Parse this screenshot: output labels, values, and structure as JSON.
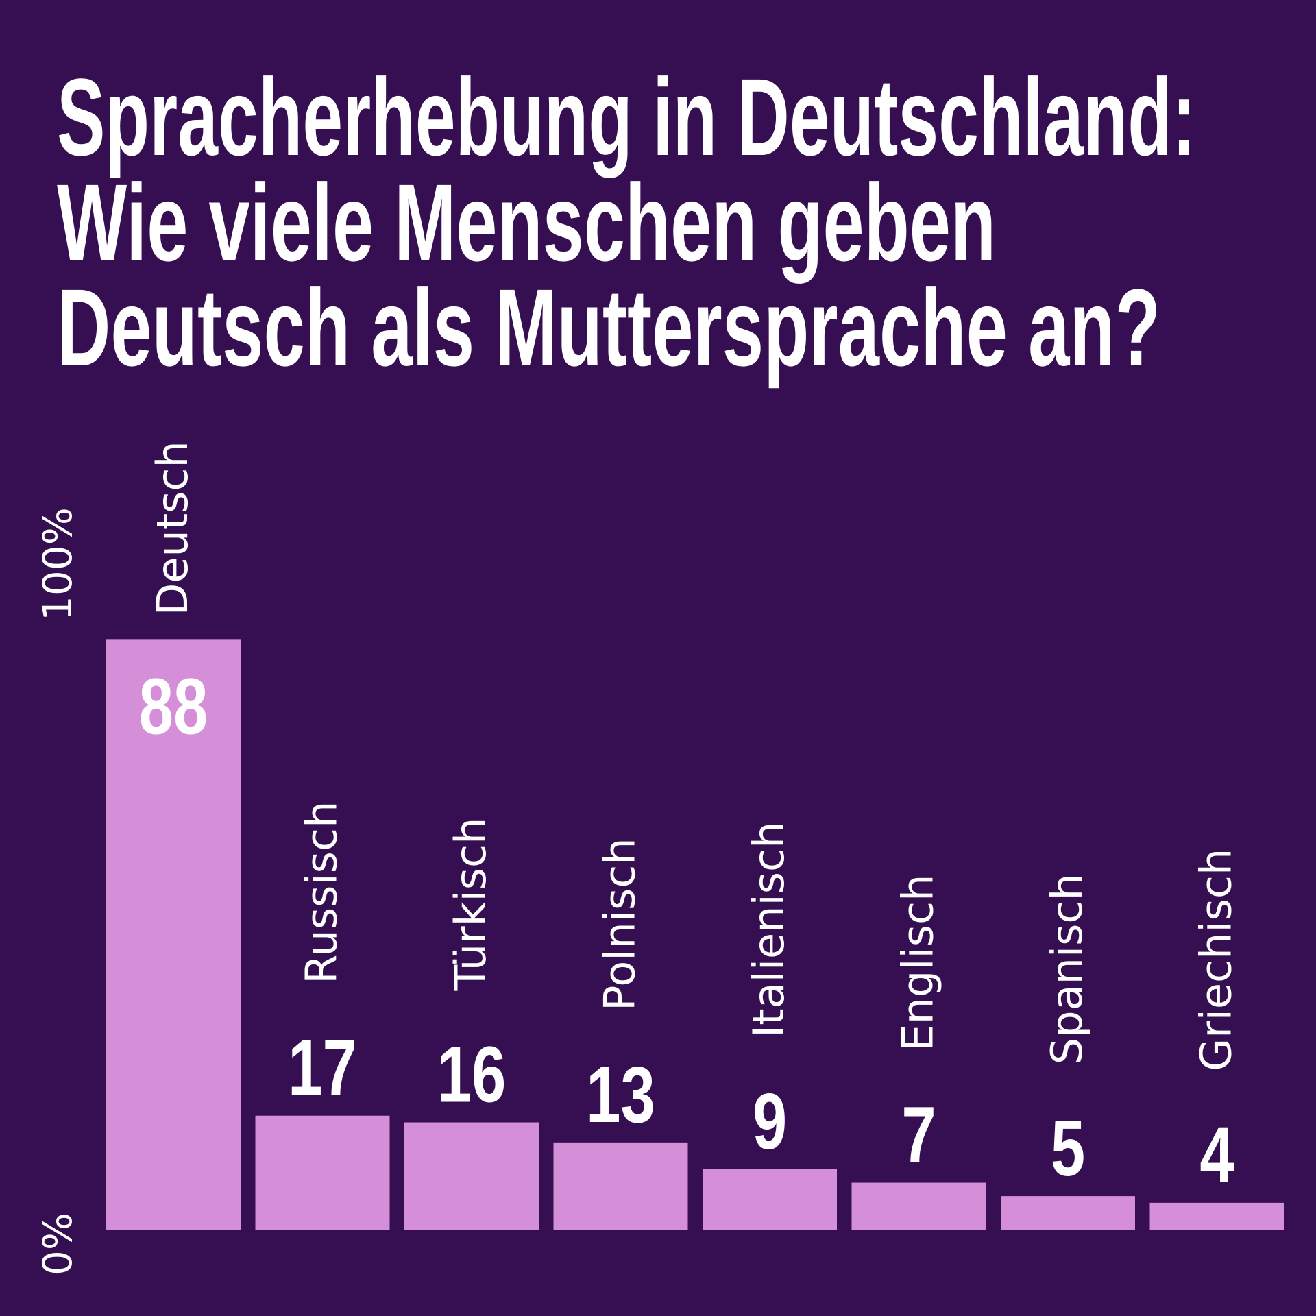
{
  "colors": {
    "background": "#360f52",
    "bar": "#d58ed8",
    "text": "#ffffff"
  },
  "chart_data": {
    "type": "bar",
    "title_lines": [
      "Spracherhebung in Deutschland:",
      "Wie viele Menschen geben",
      "Deutsch als Muttersprache an?"
    ],
    "categories": [
      "Deutsch",
      "Russisch",
      "Türkisch",
      "Polnisch",
      "Italienisch",
      "Englisch",
      "Spanisch",
      "Griechisch"
    ],
    "values": [
      88,
      17,
      16,
      13,
      9,
      7,
      5,
      4
    ],
    "y_tick_labels": [
      "0%",
      "100%"
    ],
    "ylim": [
      0,
      100
    ],
    "grid": false,
    "legend": "none"
  }
}
